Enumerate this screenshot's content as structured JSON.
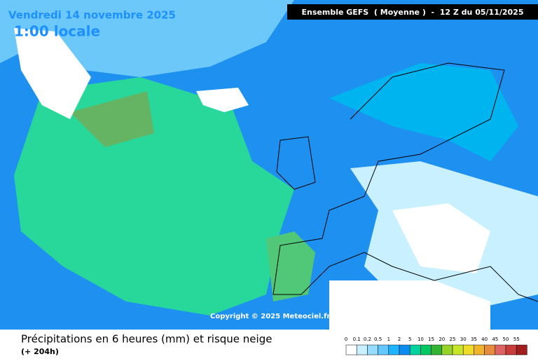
{
  "header": {
    "date": "Vendredi 14 novembre 2025",
    "time": "1:00 locale",
    "model": "Ensemble GEFS  ( Moyenne )  -  12 Z du 05/11/2025"
  },
  "copyright": "Copyright © 2025 Meteociel.fr",
  "caption": {
    "title": "Précipitations en 6 heures (mm) et risque neige",
    "subtitle": "(+ 204h)"
  },
  "legend": {
    "values": [
      0,
      0.1,
      0.2,
      0.5,
      1,
      2,
      5,
      10,
      15,
      20,
      25,
      30,
      35,
      40,
      45,
      50,
      55
    ],
    "colors": [
      "#ffffff",
      "#c8f0ff",
      "#96dcff",
      "#64c8ff",
      "#1eb4ff",
      "#0a8cf0",
      "#00d2a0",
      "#00c864",
      "#32b432",
      "#96d228",
      "#c8e628",
      "#f0dc28",
      "#f0b428",
      "#e68c3c",
      "#dc6464",
      "#c83c3c",
      "#a01e1e"
    ]
  }
}
